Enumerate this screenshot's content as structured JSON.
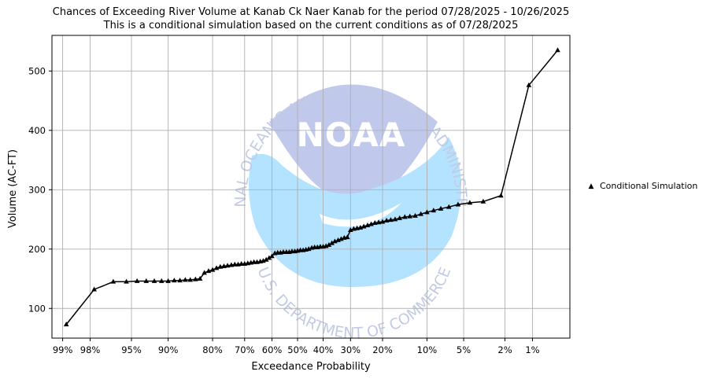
{
  "chart_data": {
    "type": "line",
    "title": "Chances of Exceeding River Volume at Kanab Ck Naer Kanab for the period 07/28/2025 - 10/26/2025",
    "subtitle": "This is a conditional simulation based on the current conditions as of 07/28/2025",
    "xlabel": "Exceedance Probability",
    "ylabel": "Volume (AC-FT)",
    "x_scale": "normal-probability",
    "x_ticks": [
      99,
      98,
      95,
      90,
      80,
      70,
      60,
      50,
      40,
      30,
      20,
      10,
      5,
      2,
      1
    ],
    "x_tick_labels": [
      "99%",
      "98%",
      "95%",
      "90%",
      "80%",
      "70%",
      "60%",
      "50%",
      "40%",
      "30%",
      "20%",
      "10%",
      "5%",
      "2%",
      "1%"
    ],
    "y_ticks": [
      100,
      200,
      300,
      400,
      500
    ],
    "ylim": [
      50,
      560
    ],
    "grid": true,
    "legend_position": "right",
    "series": [
      {
        "name": "Conditional Simulation",
        "color": "#000000",
        "marker": "triangle",
        "points": [
          [
            98.9,
            73
          ],
          [
            97.8,
            132
          ],
          [
            96.6,
            145
          ],
          [
            95.5,
            145
          ],
          [
            94.4,
            146
          ],
          [
            93.3,
            146
          ],
          [
            92.2,
            146
          ],
          [
            91.1,
            146
          ],
          [
            90.0,
            146
          ],
          [
            88.9,
            147
          ],
          [
            87.8,
            147
          ],
          [
            86.7,
            148
          ],
          [
            85.6,
            148
          ],
          [
            84.4,
            149
          ],
          [
            83.3,
            150
          ],
          [
            82.2,
            160
          ],
          [
            81.1,
            163
          ],
          [
            80.0,
            165
          ],
          [
            78.9,
            168
          ],
          [
            77.8,
            170
          ],
          [
            76.7,
            171
          ],
          [
            75.6,
            172
          ],
          [
            74.4,
            173
          ],
          [
            73.3,
            174
          ],
          [
            72.2,
            174
          ],
          [
            71.1,
            175
          ],
          [
            70.0,
            175
          ],
          [
            68.9,
            176
          ],
          [
            67.8,
            177
          ],
          [
            66.7,
            178
          ],
          [
            65.6,
            178
          ],
          [
            64.4,
            179
          ],
          [
            63.3,
            180
          ],
          [
            62.2,
            182
          ],
          [
            61.1,
            185
          ],
          [
            60.0,
            188
          ],
          [
            58.9,
            193
          ],
          [
            57.8,
            194
          ],
          [
            56.7,
            194
          ],
          [
            55.6,
            195
          ],
          [
            54.4,
            195
          ],
          [
            53.3,
            195
          ],
          [
            52.2,
            196
          ],
          [
            51.1,
            196
          ],
          [
            50.0,
            197
          ],
          [
            48.9,
            198
          ],
          [
            47.8,
            198
          ],
          [
            46.7,
            199
          ],
          [
            45.6,
            200
          ],
          [
            44.4,
            202
          ],
          [
            43.3,
            203
          ],
          [
            42.2,
            203
          ],
          [
            41.1,
            204
          ],
          [
            40.0,
            204
          ],
          [
            38.9,
            205
          ],
          [
            37.8,
            207
          ],
          [
            36.7,
            210
          ],
          [
            35.6,
            213
          ],
          [
            34.4,
            215
          ],
          [
            33.3,
            217
          ],
          [
            32.2,
            219
          ],
          [
            31.1,
            220
          ],
          [
            30.0,
            232
          ],
          [
            28.9,
            234
          ],
          [
            27.8,
            235
          ],
          [
            26.7,
            236
          ],
          [
            25.6,
            238
          ],
          [
            24.4,
            240
          ],
          [
            23.3,
            242
          ],
          [
            22.2,
            244
          ],
          [
            21.1,
            245
          ],
          [
            20.0,
            246
          ],
          [
            18.9,
            248
          ],
          [
            17.8,
            249
          ],
          [
            16.7,
            250
          ],
          [
            15.6,
            252
          ],
          [
            14.4,
            254
          ],
          [
            13.3,
            255
          ],
          [
            12.2,
            256
          ],
          [
            11.1,
            259
          ],
          [
            10.0,
            262
          ],
          [
            8.9,
            265
          ],
          [
            7.8,
            268
          ],
          [
            6.7,
            271
          ],
          [
            5.6,
            275
          ],
          [
            4.4,
            278
          ],
          [
            3.3,
            280
          ],
          [
            2.2,
            290
          ],
          [
            1.1,
            476
          ],
          [
            0.5,
            535
          ]
        ]
      }
    ]
  },
  "watermark": {
    "logo_text": "NOAA",
    "ring_text": "NATIONAL OCEANIC AND ATMOSPHERIC ADMINISTRATION · U.S. DEPARTMENT OF COMMERCE",
    "top_color": "#c0c9eb",
    "bottom_color": "#b3e3ff"
  }
}
